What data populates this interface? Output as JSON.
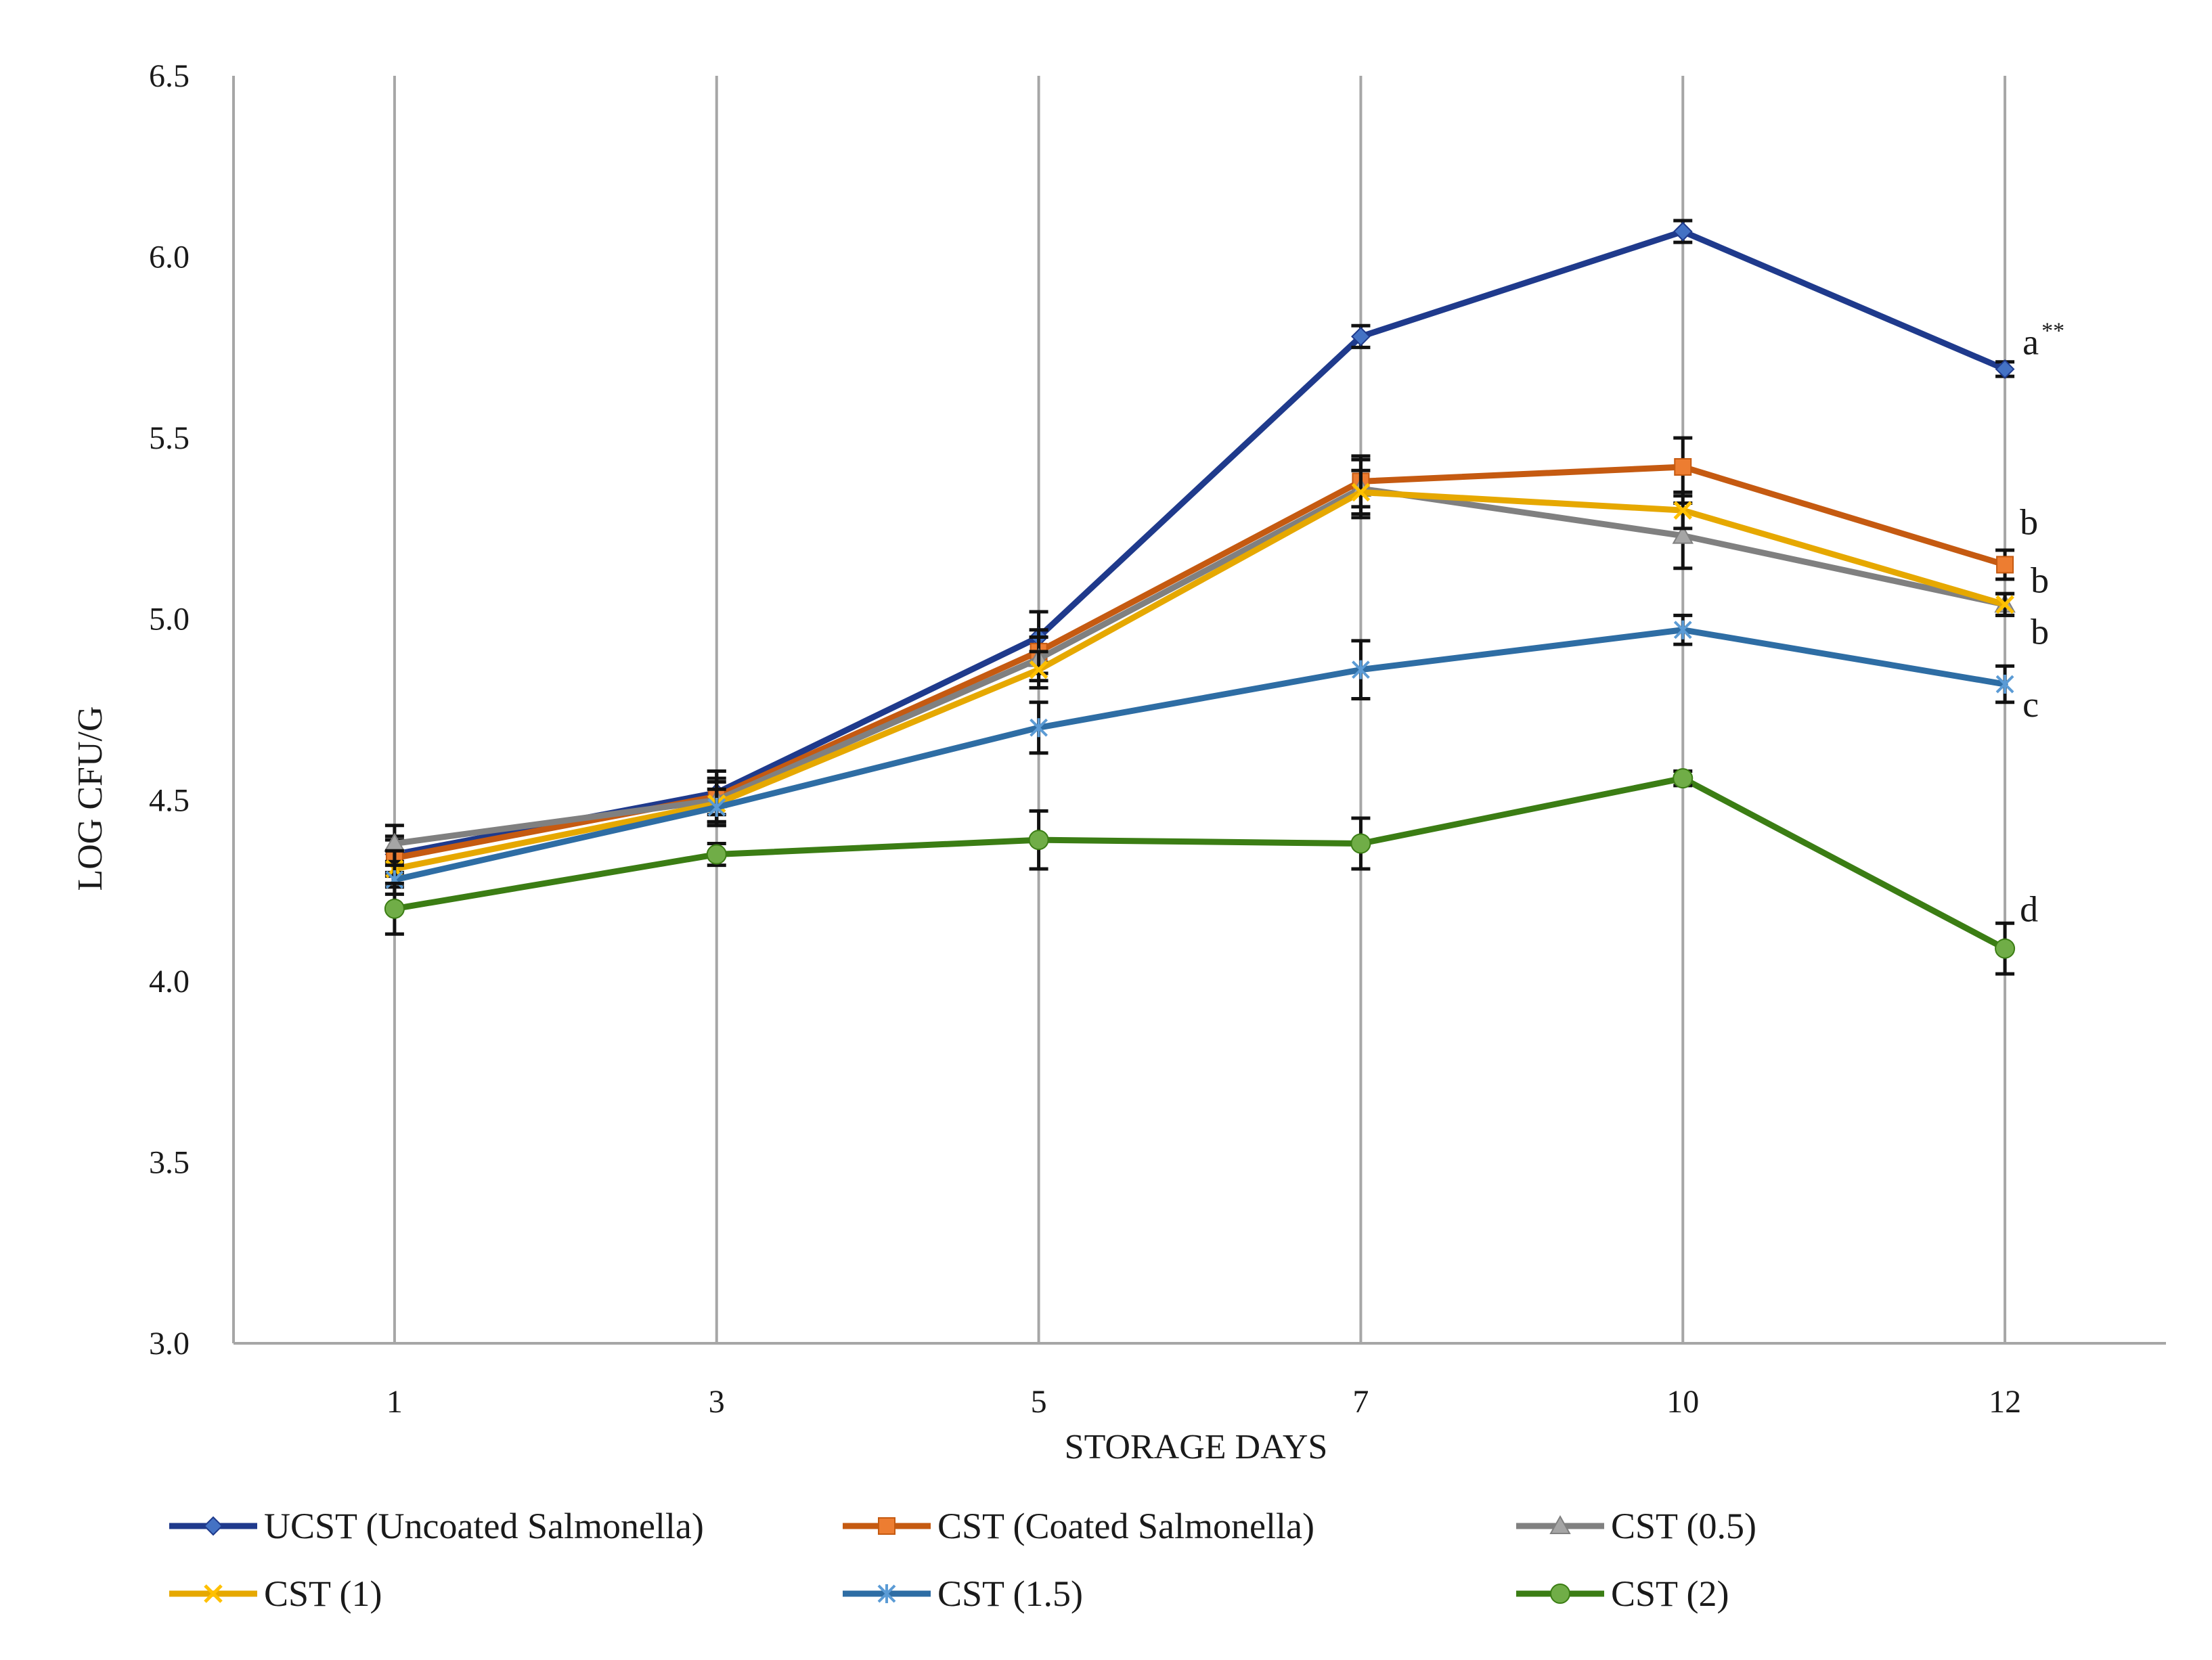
{
  "chart_data": {
    "type": "line",
    "title": "",
    "xlabel": "STORAGE DAYS",
    "ylabel": "LOG CFU/G",
    "ylim": [
      3.0,
      6.5
    ],
    "yticks": [
      "3.0",
      "3.5",
      "4.0",
      "4.5",
      "5.0",
      "5.5",
      "6.0",
      "6.5"
    ],
    "categories": [
      "1",
      "3",
      "5",
      "7",
      "10",
      "12"
    ],
    "grid": "vertical",
    "legend_position": "bottom",
    "series": [
      {
        "name": "UCST (Uncoated Salmonella)",
        "color": "#1f3a8c",
        "marker_color": "#4472c4",
        "marker": "diamond",
        "values": [
          4.35,
          4.52,
          4.95,
          5.78,
          6.07,
          5.69
        ],
        "errors": [
          0.05,
          0.06,
          0.07,
          0.03,
          0.03,
          0.02
        ],
        "annotation": "a",
        "annotation_sup": "**"
      },
      {
        "name": "CST (Coated Salmonella)",
        "color": "#c55a11",
        "marker_color": "#ed7d31",
        "marker": "square",
        "values": [
          4.34,
          4.51,
          4.91,
          5.38,
          5.42,
          5.15
        ],
        "errors": [
          0.05,
          0.07,
          0.06,
          0.07,
          0.08,
          0.04
        ],
        "annotation": "b"
      },
      {
        "name": "CST (0.5)",
        "color": "#808080",
        "marker_color": "#a5a5a5",
        "marker": "triangle",
        "values": [
          4.38,
          4.5,
          4.89,
          5.36,
          5.23,
          5.04
        ],
        "errors": [
          0.05,
          0.06,
          0.06,
          0.08,
          0.09,
          0.03
        ],
        "annotation": "b"
      },
      {
        "name": "CST (1)",
        "color": "#e6a800",
        "marker_color": "#ffc000",
        "marker": "x",
        "values": [
          4.31,
          4.49,
          4.86,
          5.35,
          5.3,
          5.04
        ],
        "errors": [
          0.05,
          0.06,
          0.05,
          0.06,
          0.05,
          0.03
        ],
        "annotation": "b"
      },
      {
        "name": "CST (1.5)",
        "color": "#2e6da4",
        "marker_color": "#5b9bd5",
        "marker": "asterisk",
        "values": [
          4.28,
          4.48,
          4.7,
          4.86,
          4.97,
          4.82
        ],
        "errors": [
          0.04,
          0.05,
          0.07,
          0.08,
          0.04,
          0.05
        ],
        "annotation": "c"
      },
      {
        "name": "CST (2)",
        "color": "#3b7d14",
        "marker_color": "#70ad47",
        "marker": "circle",
        "values": [
          4.2,
          4.35,
          4.39,
          4.38,
          4.56,
          4.09
        ],
        "errors": [
          0.07,
          0.03,
          0.08,
          0.07,
          0.02,
          0.07
        ],
        "annotation": "d"
      }
    ]
  }
}
